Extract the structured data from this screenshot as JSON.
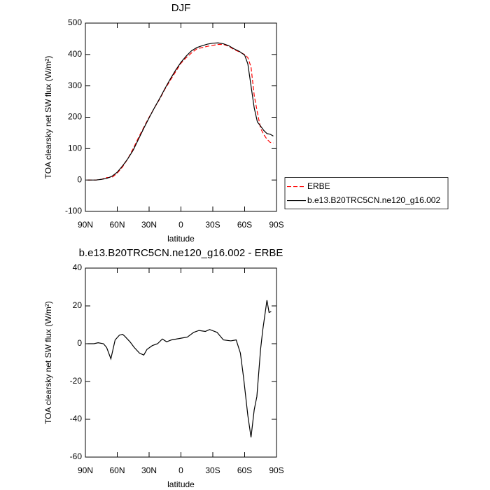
{
  "chart_data": [
    {
      "type": "line",
      "title": "DJF",
      "xlabel": "latitude",
      "ylabel": "TOA clearsky net SW flux (W/m²)",
      "x": [
        88,
        85,
        80,
        75,
        70,
        65,
        60,
        55,
        50,
        45,
        40,
        35,
        30,
        25,
        20,
        15,
        10,
        5,
        0,
        -5,
        -10,
        -15,
        -20,
        -25,
        -30,
        -35,
        -40,
        -45,
        -50,
        -55,
        -60,
        -63,
        -66,
        -69,
        -72,
        -75,
        -78,
        -81,
        -84,
        -87
      ],
      "series": [
        {
          "name": "ERBE",
          "color": "#ff0000",
          "linestyle": "dashed",
          "values": [
            0,
            0,
            0,
            2,
            8,
            8,
            22,
            42,
            68,
            100,
            135,
            168,
            200,
            230,
            258,
            290,
            318,
            345,
            372,
            390,
            405,
            418,
            422,
            426,
            429,
            432,
            432,
            426,
            416,
            408,
            400,
            390,
            360,
            270,
            215,
            165,
            145,
            130,
            120,
            118
          ]
        },
        {
          "name": "b.e13.B20TRC5CN.ne120_g16.002",
          "color": "#000000",
          "linestyle": "solid",
          "values": [
            0,
            0,
            0,
            2,
            5,
            12,
            25,
            45,
            68,
            95,
            130,
            165,
            198,
            230,
            260,
            292,
            322,
            350,
            375,
            395,
            412,
            422,
            428,
            433,
            436,
            437,
            434,
            428,
            418,
            410,
            398,
            370,
            300,
            230,
            185,
            172,
            158,
            148,
            146,
            140
          ]
        }
      ],
      "xlim": [
        90,
        -90
      ],
      "xticks": [
        {
          "value": 90,
          "label": "90N"
        },
        {
          "value": 60,
          "label": "60N"
        },
        {
          "value": 30,
          "label": "30N"
        },
        0,
        {
          "value": -30,
          "label": "30S"
        },
        {
          "value": -60,
          "label": "60S"
        },
        {
          "value": -90,
          "label": "90S"
        }
      ],
      "ylim": [
        -100,
        500
      ],
      "yticks": [
        -100,
        0,
        100,
        200,
        300,
        400,
        500
      ],
      "legend": "right"
    },
    {
      "type": "line",
      "title": "b.e13.B20TRC5CN.ne120_g16.002 - ERBE",
      "xlabel": "latitude",
      "ylabel": "TOA clearsky net SW flux (W/m²)",
      "x": [
        88,
        82,
        78,
        73,
        70,
        66,
        62,
        58,
        55,
        53,
        48,
        44,
        39,
        35,
        32,
        27,
        22,
        17.5,
        13.5,
        9,
        4,
        -1,
        -6,
        -12,
        -17,
        -23,
        -27,
        -34,
        -40,
        -47,
        -52,
        -56,
        -59,
        -63,
        -66,
        -69,
        -71.5,
        -75,
        -77,
        -81,
        -83,
        -85
      ],
      "series": [
        {
          "color": "#000000",
          "linestyle": "solid",
          "values": [
            0,
            0,
            0.5,
            0,
            -2,
            -8,
            2,
            4.5,
            5,
            4,
            1,
            -2,
            -5,
            -6,
            -3,
            -1,
            0,
            2.5,
            1,
            2,
            2.5,
            3,
            3.5,
            6,
            7,
            6.5,
            7.5,
            6,
            2,
            1.5,
            2,
            -5,
            -18,
            -38,
            -49.5,
            -35,
            -28,
            -3,
            7,
            23,
            16.5,
            17
          ]
        }
      ],
      "xlim": [
        90,
        -90
      ],
      "xticks": [
        {
          "value": 90,
          "label": "90N"
        },
        {
          "value": 60,
          "label": "60N"
        },
        {
          "value": 30,
          "label": "30N"
        },
        0,
        {
          "value": -30,
          "label": "30S"
        },
        {
          "value": -60,
          "label": "60S"
        },
        {
          "value": -90,
          "label": "90S"
        }
      ],
      "ylim": [
        -60,
        40
      ],
      "yticks": [
        -60,
        -40,
        -20,
        0,
        20,
        40
      ]
    }
  ]
}
